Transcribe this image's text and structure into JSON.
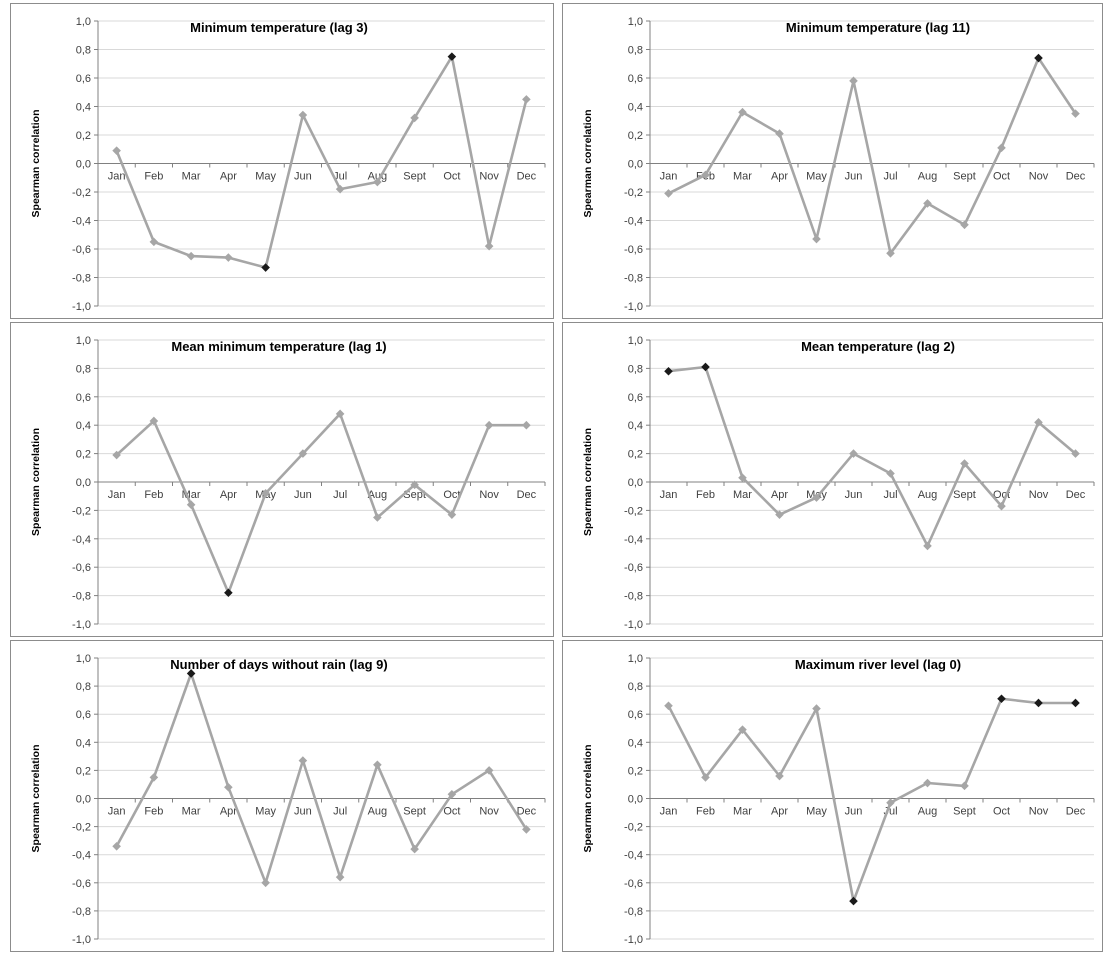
{
  "colors": {
    "line": "#a6a6a6",
    "marker": "#a6a6a6",
    "significant_marker": "#1a1a1a",
    "grid": "#d9d9d9",
    "axis": "#808080"
  },
  "chart_data": [
    {
      "type": "line",
      "title": "Minimum temperature (lag 3)",
      "ylabel": "Spearman correlation",
      "categories": [
        "Jan",
        "Feb",
        "Mar",
        "Apr",
        "May",
        "Jun",
        "Jul",
        "Aug",
        "Sept",
        "Oct",
        "Nov",
        "Dec"
      ],
      "values": [
        0.09,
        -0.55,
        -0.65,
        -0.66,
        -0.73,
        0.34,
        -0.18,
        -0.13,
        0.32,
        0.75,
        -0.58,
        0.45
      ],
      "significant": [
        4,
        9
      ],
      "ylim": [
        -1.0,
        1.0
      ],
      "yticks": [
        "1,0",
        "0,8",
        "0,6",
        "0,4",
        "0,2",
        "0,0",
        "-0,2",
        "-0,4",
        "-0,6",
        "-0,8",
        "-1,0"
      ],
      "grid": true
    },
    {
      "type": "line",
      "title": "Minimum temperature (lag 11)",
      "ylabel": "Spearman correlation",
      "categories": [
        "Jan",
        "Feb",
        "Mar",
        "Apr",
        "May",
        "Jun",
        "Jul",
        "Aug",
        "Sept",
        "Oct",
        "Nov",
        "Dec"
      ],
      "values": [
        -0.21,
        -0.08,
        0.36,
        0.21,
        -0.53,
        0.58,
        -0.63,
        -0.28,
        -0.43,
        0.11,
        0.74,
        0.35
      ],
      "significant": [
        10
      ],
      "ylim": [
        -1.0,
        1.0
      ],
      "yticks": [
        "1,0",
        "0,8",
        "0,6",
        "0,4",
        "0,2",
        "0,0",
        "-0,2",
        "-0,4",
        "-0,6",
        "-0,8",
        "-1,0"
      ],
      "grid": true
    },
    {
      "type": "line",
      "title": "Mean minimum temperature (lag 1)",
      "ylabel": "Spearman correlation",
      "categories": [
        "Jan",
        "Feb",
        "Mar",
        "Apr",
        "May",
        "Jun",
        "Jul",
        "Aug",
        "Sept",
        "Oct",
        "Nov",
        "Dec"
      ],
      "values": [
        0.19,
        0.43,
        -0.16,
        -0.78,
        -0.08,
        0.2,
        0.48,
        -0.25,
        -0.02,
        -0.23,
        0.4,
        0.4
      ],
      "significant": [
        3
      ],
      "ylim": [
        -1.0,
        1.0
      ],
      "yticks": [
        "1,0",
        "0,8",
        "0,6",
        "0,4",
        "0,2",
        "0,0",
        "-0,2",
        "-0,4",
        "-0,6",
        "-0,8",
        "-1,0"
      ],
      "grid": true
    },
    {
      "type": "line",
      "title": "Mean temperature (lag 2)",
      "ylabel": "Spearman correlation",
      "categories": [
        "Jan",
        "Feb",
        "Mar",
        "Apr",
        "May",
        "Jun",
        "Jul",
        "Aug",
        "Sept",
        "Oct",
        "Nov",
        "Dec"
      ],
      "values": [
        0.78,
        0.81,
        0.03,
        -0.23,
        -0.11,
        0.2,
        0.06,
        -0.45,
        0.13,
        -0.17,
        0.42,
        0.2
      ],
      "significant": [
        0,
        1
      ],
      "ylim": [
        -1.0,
        1.0
      ],
      "yticks": [
        "1,0",
        "0,8",
        "0,6",
        "0,4",
        "0,2",
        "0,0",
        "-0,2",
        "-0,4",
        "-0,6",
        "-0,8",
        "-1,0"
      ],
      "grid": true
    },
    {
      "type": "line",
      "title": "Number of days without rain (lag 9)",
      "ylabel": "Spearman correlation",
      "categories": [
        "Jan",
        "Feb",
        "Mar",
        "Apr",
        "May",
        "Jun",
        "Jul",
        "Aug",
        "Sept",
        "Oct",
        "Nov",
        "Dec"
      ],
      "values": [
        -0.34,
        0.15,
        0.89,
        0.08,
        -0.6,
        0.27,
        -0.56,
        0.24,
        -0.36,
        0.03,
        0.2,
        -0.22
      ],
      "significant": [
        2
      ],
      "ylim": [
        -1.0,
        1.0
      ],
      "yticks": [
        "1,0",
        "0,8",
        "0,6",
        "0,4",
        "0,2",
        "0,0",
        "-0,2",
        "-0,4",
        "-0,6",
        "-0,8",
        "-1,0"
      ],
      "grid": true
    },
    {
      "type": "line",
      "title": "Maximum river level  (lag 0)",
      "ylabel": "Spearman correlation",
      "categories": [
        "Jan",
        "Feb",
        "Mar",
        "Apr",
        "May",
        "Jun",
        "Jul",
        "Aug",
        "Sept",
        "Oct",
        "Nov",
        "Dec"
      ],
      "values": [
        0.66,
        0.15,
        0.49,
        0.16,
        0.64,
        -0.73,
        -0.03,
        0.11,
        0.09,
        0.71,
        0.68,
        0.68
      ],
      "significant": [
        5,
        9,
        10,
        11
      ],
      "ylim": [
        -1.0,
        1.0
      ],
      "yticks": [
        "1,0",
        "0,8",
        "0,6",
        "0,4",
        "0,2",
        "0,0",
        "-0,2",
        "-0,4",
        "-0,6",
        "-0,8",
        "-1,0"
      ],
      "grid": true
    }
  ]
}
